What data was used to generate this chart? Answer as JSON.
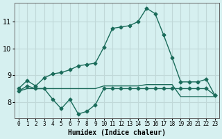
{
  "xlabel": "Humidex (Indice chaleur)",
  "ylabel": "",
  "bg_color": "#d6f0f0",
  "grid_color": "#c0d8d8",
  "line_color": "#1a6b5a",
  "x": [
    0,
    1,
    2,
    3,
    4,
    5,
    6,
    7,
    8,
    9,
    10,
    11,
    12,
    13,
    14,
    15,
    16,
    17,
    18,
    19,
    20,
    21,
    22,
    23
  ],
  "line1": [
    8.5,
    8.8,
    8.6,
    8.9,
    9.05,
    9.1,
    9.2,
    9.35,
    9.4,
    9.45,
    10.05,
    10.75,
    10.8,
    10.85,
    11.0,
    11.5,
    11.3,
    10.5,
    9.65,
    8.75,
    8.75,
    8.75,
    8.85,
    8.25
  ],
  "line2": [
    8.4,
    8.5,
    8.5,
    8.5,
    8.5,
    8.5,
    8.5,
    8.5,
    8.5,
    8.5,
    8.6,
    8.6,
    8.6,
    8.6,
    8.6,
    8.65,
    8.65,
    8.65,
    8.65,
    8.2,
    8.2,
    8.2,
    8.2,
    8.2
  ],
  "line3": [
    8.4,
    8.6,
    8.5,
    8.5,
    8.1,
    7.75,
    8.1,
    7.55,
    7.65,
    7.9,
    8.5,
    8.5,
    8.5,
    8.5,
    8.5,
    8.5,
    8.5,
    8.5,
    8.5,
    8.5,
    8.5,
    8.5,
    8.5,
    8.25
  ],
  "ylim": [
    7.4,
    11.7
  ],
  "yticks": [
    8,
    9,
    10,
    11
  ],
  "marker": "D",
  "marker_size": 2.5,
  "linewidth": 1.0
}
